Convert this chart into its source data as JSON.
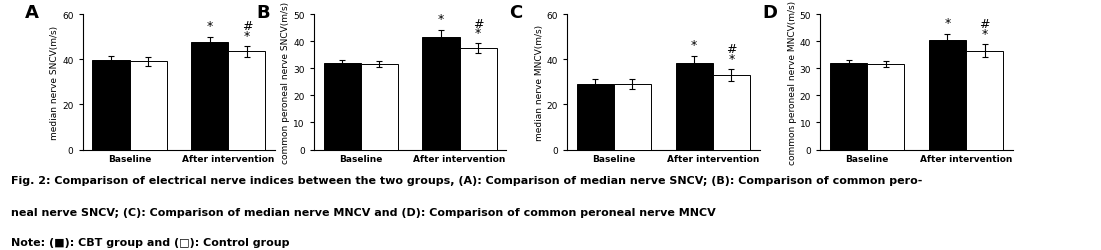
{
  "panels": [
    {
      "label": "A",
      "ylabel": "median nerve SNCV(m/s)",
      "ylim": [
        0,
        60
      ],
      "yticks": [
        0,
        20,
        40,
        60
      ],
      "groups": [
        "Baseline",
        "After intervention"
      ],
      "black_vals": [
        39.5,
        47.5
      ],
      "white_vals": [
        39.0,
        43.5
      ],
      "black_errs": [
        1.8,
        2.2
      ],
      "white_errs": [
        2.0,
        2.5
      ],
      "sig_black": [
        false,
        true
      ],
      "sig_white": [
        false,
        true
      ],
      "hash_white": [
        false,
        true
      ]
    },
    {
      "label": "B",
      "ylabel": "common peroneal nerve SNCV(m/s)",
      "ylim": [
        0,
        50
      ],
      "yticks": [
        0,
        10,
        20,
        30,
        40,
        50
      ],
      "groups": [
        "Baseline",
        "After intervention"
      ],
      "black_vals": [
        32.0,
        41.5
      ],
      "white_vals": [
        31.5,
        37.5
      ],
      "black_errs": [
        1.2,
        2.5
      ],
      "white_errs": [
        1.2,
        1.8
      ],
      "sig_black": [
        false,
        true
      ],
      "sig_white": [
        false,
        true
      ],
      "hash_white": [
        false,
        true
      ]
    },
    {
      "label": "C",
      "ylabel": "median nerve MNCV(m/s)",
      "ylim": [
        0,
        60
      ],
      "yticks": [
        0,
        20,
        40,
        60
      ],
      "groups": [
        "Baseline",
        "After intervention"
      ],
      "black_vals": [
        29.0,
        38.5
      ],
      "white_vals": [
        29.0,
        33.0
      ],
      "black_errs": [
        2.2,
        2.8
      ],
      "white_errs": [
        2.2,
        2.8
      ],
      "sig_black": [
        false,
        true
      ],
      "sig_white": [
        false,
        true
      ],
      "hash_white": [
        false,
        true
      ]
    },
    {
      "label": "D",
      "ylabel": "common peroneal nerve MNCV(m/s)",
      "ylim": [
        0,
        50
      ],
      "yticks": [
        0,
        10,
        20,
        30,
        40,
        50
      ],
      "groups": [
        "Baseline",
        "After intervention"
      ],
      "black_vals": [
        32.0,
        40.5
      ],
      "white_vals": [
        31.5,
        36.5
      ],
      "black_errs": [
        1.2,
        2.0
      ],
      "white_errs": [
        1.2,
        2.5
      ],
      "sig_black": [
        false,
        true
      ],
      "sig_white": [
        false,
        true
      ],
      "hash_white": [
        false,
        true
      ]
    }
  ],
  "caption_line1": "Fig. 2: Comparison of electrical nerve indices between the two groups, (A): Comparison of median nerve SNCV; (B): Comparison of common pero-",
  "caption_line2": "neal nerve SNCV; (C): Comparison of median nerve MNCV and (D): Comparison of common peroneal nerve MNCV",
  "caption_line3": "Note: (■): CBT group and (□): Control group",
  "bar_width": 0.3,
  "black_color": "#000000",
  "white_color": "#ffffff",
  "edge_color": "#000000",
  "capsize": 2,
  "elinewidth": 0.8,
  "bar_linewidth": 0.7,
  "ylabel_fontsize": 6.5,
  "tick_fontsize": 6.5,
  "panel_label_fontsize": 13,
  "caption_fontsize": 8,
  "sig_fontsize": 9,
  "group_positions": [
    0.2,
    1.0
  ]
}
